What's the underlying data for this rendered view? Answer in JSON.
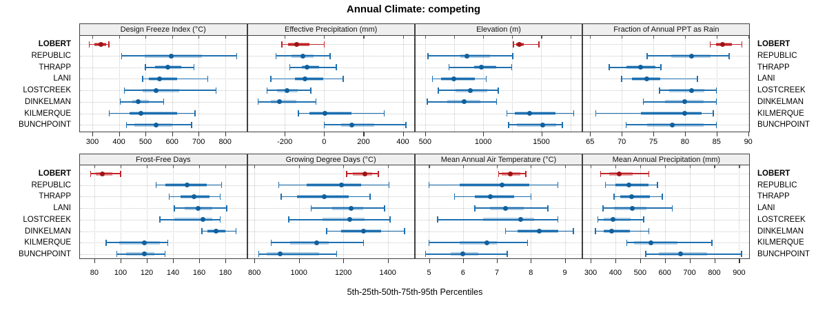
{
  "title": "Annual Climate: competing",
  "caption": "5th-25th-50th-75th-95th Percentiles",
  "sites": [
    "LOBERT",
    "REPUBLIC",
    "THRAPP",
    "LANI",
    "LOSTCREEK",
    "DINKELMAN",
    "KILMERQUE",
    "BUNCHPOINT"
  ],
  "highlight_site": "LOBERT",
  "colors": {
    "blue_line": "#1c6fb0",
    "blue_dot": "#10609d",
    "blue_band": "rgba(28,112,176,0.35)",
    "red_line": "#c02327",
    "red_dot": "#9d1418",
    "red_band": "rgba(192,35,39,0.45)",
    "grid": "#c6c6c6",
    "panel_border": "#3f3f3f",
    "strip_bg": "#efefef"
  },
  "chart_data": [
    {
      "type": "percentile-dotplot",
      "title": "Design Freeze Index (°C)",
      "xlim": [
        253,
        880
      ],
      "ticks": [
        300,
        400,
        500,
        600,
        700,
        800
      ],
      "grid": [
        300,
        400,
        500,
        600,
        700,
        800
      ],
      "percentiles": [
        "5th",
        "25th",
        "50th",
        "75th",
        "95th"
      ],
      "values": [
        [
          288,
          308,
          332,
          352,
          362
        ],
        [
          410,
          498,
          596,
          713,
          843
        ],
        [
          500,
          535,
          583,
          635,
          682
        ],
        [
          489,
          512,
          553,
          620,
          735
        ],
        [
          420,
          490,
          540,
          628,
          765
        ],
        [
          405,
          450,
          472,
          512,
          568
        ],
        [
          363,
          440,
          482,
          620,
          687
        ],
        [
          428,
          458,
          539,
          600,
          674
        ]
      ]
    },
    {
      "type": "percentile-dotplot",
      "title": "Effective Precipitation (mm)",
      "xlim": [
        -388,
        457
      ],
      "ticks": [
        -200,
        0,
        200,
        400
      ],
      "grid": [
        -200,
        0,
        200,
        400
      ],
      "percentiles": [
        "5th",
        "25th",
        "50th",
        "75th",
        "95th"
      ],
      "values": [
        [
          -215,
          -185,
          -140,
          -75,
          0
        ],
        [
          -245,
          -165,
          -108,
          -53,
          30
        ],
        [
          -175,
          -112,
          -88,
          -25,
          62
        ],
        [
          -270,
          -148,
          -97,
          -5,
          97
        ],
        [
          -290,
          -238,
          -190,
          -134,
          -68
        ],
        [
          -335,
          -272,
          -228,
          -140,
          -42
        ],
        [
          -130,
          -75,
          5,
          140,
          305
        ],
        [
          0,
          85,
          140,
          255,
          415
        ]
      ]
    },
    {
      "type": "percentile-dotplot",
      "title": "Elevation (m)",
      "xlim": [
        417,
        1848
      ],
      "ticks": [
        500,
        1000,
        1500
      ],
      "grid": [
        500,
        750,
        1000,
        1250,
        1500,
        1750
      ],
      "percentiles": [
        "5th",
        "25th",
        "50th",
        "75th",
        "95th"
      ],
      "values": [
        [
          1260,
          1285,
          1310,
          1350,
          1480
        ],
        [
          525,
          805,
          860,
          1060,
          1255
        ],
        [
          705,
          925,
          985,
          1110,
          1245
        ],
        [
          565,
          635,
          745,
          930,
          1025
        ],
        [
          615,
          760,
          890,
          1035,
          1130
        ],
        [
          520,
          690,
          835,
          975,
          1115
        ],
        [
          1205,
          1270,
          1400,
          1620,
          1780
        ],
        [
          1220,
          1290,
          1515,
          1630,
          1680
        ]
      ]
    },
    {
      "type": "percentile-dotplot",
      "title": "Fraction of Annual PPT as Rain",
      "xlim": [
        63.9,
        90.2
      ],
      "ticks": [
        65,
        70,
        75,
        80,
        85,
        90
      ],
      "grid": [
        65,
        70,
        75,
        80,
        85,
        90
      ],
      "percentiles": [
        "5th",
        "25th",
        "50th",
        "75th",
        "95th"
      ],
      "values": [
        [
          84,
          84.9,
          86,
          87.4,
          89
        ],
        [
          74,
          77.8,
          81,
          84.1,
          87
        ],
        [
          68,
          70.8,
          73,
          75.3,
          76.2
        ],
        [
          70,
          71.6,
          74,
          76.1,
          82
        ],
        [
          76,
          77.5,
          81,
          83.1,
          85
        ],
        [
          73.4,
          76.9,
          80,
          83,
          85
        ],
        [
          65.9,
          73,
          80,
          82.6,
          84.5
        ],
        [
          70.7,
          74,
          78,
          82.9,
          85
        ]
      ]
    },
    {
      "type": "percentile-dotplot",
      "title": "Frost-Free Days",
      "xlim": [
        69,
        196
      ],
      "ticks": [
        80,
        100,
        120,
        140,
        160,
        180
      ],
      "grid": [
        80,
        100,
        120,
        140,
        160,
        180
      ],
      "percentiles": [
        "5th",
        "25th",
        "50th",
        "75th",
        "95th"
      ],
      "values": [
        [
          77,
          81,
          86,
          94,
          100
        ],
        [
          127,
          134,
          151,
          166,
          177
        ],
        [
          137,
          146,
          156,
          168,
          176
        ],
        [
          141,
          149,
          159,
          170,
          181
        ],
        [
          130,
          141,
          163,
          170,
          176
        ],
        [
          162,
          166,
          173,
          180,
          188
        ],
        [
          89,
          99,
          118,
          130,
          136
        ],
        [
          97,
          104,
          118,
          126,
          134
        ]
      ]
    },
    {
      "type": "percentile-dotplot",
      "title": "Growing Degree Days (°C)",
      "xlim": [
        770,
        1518
      ],
      "ticks": [
        800,
        1000,
        1200,
        1400
      ],
      "grid": [
        800,
        1000,
        1200,
        1400
      ],
      "percentiles": [
        "5th",
        "25th",
        "50th",
        "75th",
        "95th"
      ],
      "values": [
        [
          1215,
          1242,
          1298,
          1330,
          1357
        ],
        [
          910,
          1035,
          1190,
          1280,
          1405
        ],
        [
          920,
          990,
          1115,
          1225,
          1320
        ],
        [
          1055,
          1150,
          1235,
          1290,
          1385
        ],
        [
          955,
          1105,
          1230,
          1295,
          1410
        ],
        [
          1125,
          1190,
          1290,
          1370,
          1475
        ],
        [
          875,
          960,
          1080,
          1135,
          1290
        ],
        [
          820,
          855,
          915,
          1090,
          1170
        ]
      ]
    },
    {
      "type": "percentile-dotplot",
      "title": "Mean Annual Air Temperature (°C)",
      "xlim": [
        4.6,
        9.5
      ],
      "ticks": [
        5,
        6,
        7,
        8,
        9
      ],
      "grid": [
        5,
        6,
        7,
        8,
        9
      ],
      "percentiles": [
        "5th",
        "25th",
        "50th",
        "75th",
        "95th"
      ],
      "values": [
        [
          7.05,
          7.15,
          7.4,
          7.7,
          7.85
        ],
        [
          5.0,
          5.9,
          7.15,
          7.95,
          8.8
        ],
        [
          5.75,
          6.35,
          6.8,
          7.5,
          8.0
        ],
        [
          6.35,
          6.8,
          7.25,
          7.8,
          8.5
        ],
        [
          5.25,
          6.6,
          7.7,
          8.1,
          8.8
        ],
        [
          7.25,
          7.6,
          8.25,
          8.8,
          9.25
        ],
        [
          5.0,
          5.9,
          6.7,
          7.0,
          7.9
        ],
        [
          4.9,
          5.65,
          6.0,
          6.45,
          7.3
        ]
      ]
    },
    {
      "type": "percentile-dotplot",
      "title": "Mean Annual Precipitation (mm)",
      "xlim": [
        270,
        942
      ],
      "ticks": [
        300,
        400,
        500,
        600,
        700,
        800,
        900
      ],
      "grid": [
        300,
        400,
        500,
        600,
        700,
        800,
        900
      ],
      "percentiles": [
        "5th",
        "25th",
        "50th",
        "75th",
        "95th"
      ],
      "values": [
        [
          340,
          375,
          415,
          470,
          535
        ],
        [
          360,
          400,
          455,
          535,
          570
        ],
        [
          395,
          420,
          465,
          540,
          590
        ],
        [
          350,
          395,
          470,
          525,
          630
        ],
        [
          330,
          352,
          390,
          463,
          515
        ],
        [
          320,
          352,
          385,
          458,
          535
        ],
        [
          447,
          477,
          545,
          650,
          790
        ],
        [
          523,
          575,
          665,
          770,
          910
        ]
      ]
    }
  ]
}
